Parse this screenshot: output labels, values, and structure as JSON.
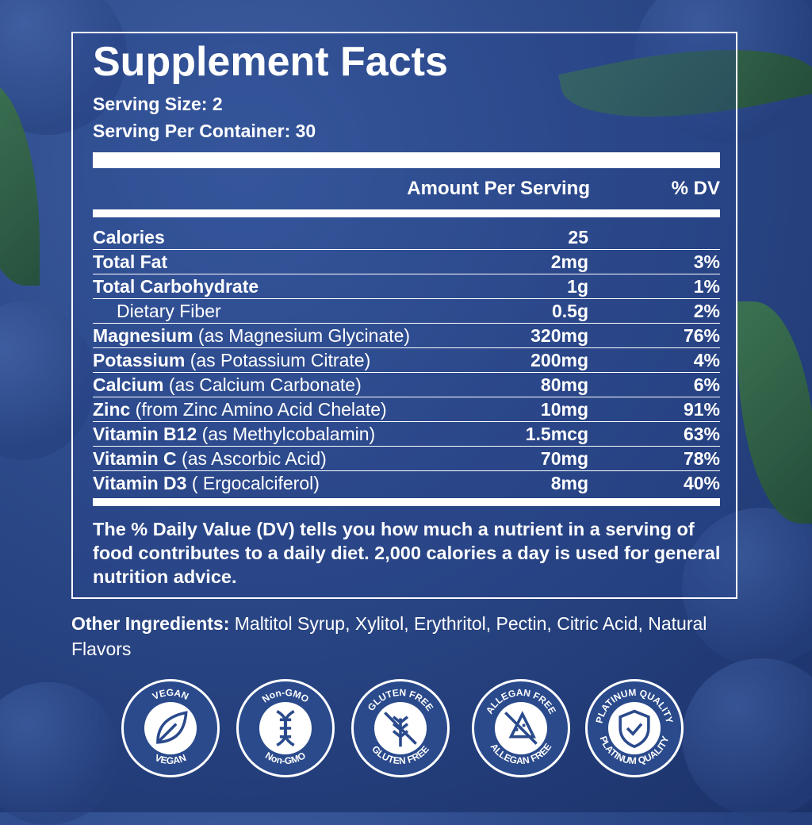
{
  "title": "Supplement Facts",
  "serving_size": "Serving Size: 2",
  "servings_per_container": "Serving Per Container: 30",
  "headers": {
    "amount": "Amount Per Serving",
    "dv": "% DV"
  },
  "rows": [
    {
      "name": "Calories",
      "detail": "",
      "amount": "25",
      "dv": ""
    },
    {
      "name": "Total Fat",
      "detail": "",
      "amount": "2mg",
      "dv": "3%"
    },
    {
      "name": "Total Carbohydrate",
      "detail": "",
      "amount": "1g",
      "dv": "1%"
    },
    {
      "name": "",
      "detail": "Dietary Fiber",
      "amount": "0.5g",
      "dv": "2%"
    },
    {
      "name": "Magnesium",
      "detail": " (as Magnesium Glycinate)",
      "amount": "320mg",
      "dv": "76%"
    },
    {
      "name": "Potassium",
      "detail": " (as Potassium Citrate)",
      "amount": "200mg",
      "dv": "4%"
    },
    {
      "name": "Calcium",
      "detail": " (as Calcium Carbonate)",
      "amount": "80mg",
      "dv": "6%"
    },
    {
      "name": "Zinc",
      "detail": " (from Zinc Amino Acid Chelate)",
      "amount": "10mg",
      "dv": "91%"
    },
    {
      "name": "Vitamin B12",
      "detail": " (as Methylcobalamin)",
      "amount": "1.5mcg",
      "dv": "63%"
    },
    {
      "name": "Vitamin C",
      "detail": " (as Ascorbic Acid)",
      "amount": "70mg",
      "dv": "78%"
    },
    {
      "name": "Vitamin D3",
      "detail": " ( Ergocalciferol)",
      "amount": "8mg",
      "dv": "40%"
    }
  ],
  "note": "The % Daily Value (DV) tells you how much a nutrient in a serving of food contributes to a daily diet. 2,000 calories a day is used for general nutrition advice.",
  "other_ingredients": {
    "label": "Other Ingredients:",
    "value": " Maltitol Syrup, Xylitol, Erythritol, Pectin, Citric Acid, Natural Flavors"
  },
  "badges": [
    {
      "label": "VEGAN",
      "icon": "leaf-icon"
    },
    {
      "label": "Non-GMO",
      "icon": "dna-icon"
    },
    {
      "label": "GLUTEN FREE",
      "icon": "wheat-crossed-icon"
    },
    {
      "label": "ALLEGAN FREE",
      "icon": "allergen-crossed-icon"
    },
    {
      "label": "PLATINUM QUALITY",
      "icon": "shield-check-icon"
    }
  ],
  "colors": {
    "background": "#2d4a8a",
    "text": "#ffffff"
  }
}
